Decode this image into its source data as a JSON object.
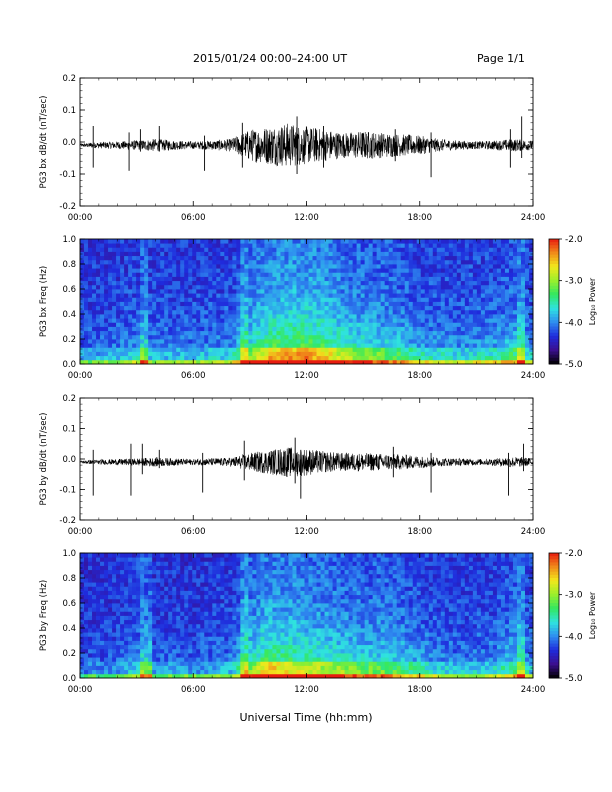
{
  "header": {
    "title": "2015/01/24  00:00–24:00 UT",
    "page": "Page 1/1"
  },
  "xaxis": {
    "label": "Universal Time (hh:mm)",
    "ticks": [
      "00:00",
      "06:00",
      "12:00",
      "18:00",
      "24:00"
    ],
    "range_hours": [
      0,
      24
    ]
  },
  "colorbar": {
    "label": "Log₁₀ Power",
    "ticks": [
      "-2.0",
      "-3.0",
      "-4.0",
      "-5.0"
    ],
    "range": [
      -5,
      -2
    ],
    "colors": [
      "#000000",
      "#3b0f8f",
      "#1f2bdc",
      "#2f8ef0",
      "#2fe3e0",
      "#33e860",
      "#9aef2c",
      "#f2e81c",
      "#f08a1a",
      "#e81c10"
    ]
  },
  "chart_data": [
    {
      "type": "line",
      "ylabel": "PG3 bx dB/dt (nT/sec)",
      "ylim": [
        -0.2,
        0.2
      ],
      "yticks": [
        "0.2",
        "0.1",
        "0.0",
        "-0.1",
        "-0.2"
      ],
      "baseline": -0.01,
      "envelope_hours": [
        0,
        1,
        2,
        3,
        4,
        5,
        6,
        7,
        8,
        9,
        10,
        11,
        12,
        13,
        14,
        15,
        16,
        17,
        18,
        19,
        20,
        21,
        22,
        23,
        24
      ],
      "envelope_amplitude": [
        0.005,
        0.01,
        0.012,
        0.015,
        0.02,
        0.015,
        0.012,
        0.015,
        0.02,
        0.05,
        0.06,
        0.07,
        0.06,
        0.05,
        0.04,
        0.045,
        0.04,
        0.035,
        0.03,
        0.02,
        0.015,
        0.012,
        0.015,
        0.02,
        0.015
      ],
      "spikes": [
        {
          "hour": 0.7,
          "min": -0.08,
          "max": 0.05
        },
        {
          "hour": 2.6,
          "min": -0.09,
          "max": 0.03
        },
        {
          "hour": 3.2,
          "min": -0.03,
          "max": 0.04
        },
        {
          "hour": 4.2,
          "min": -0.03,
          "max": 0.05
        },
        {
          "hour": 6.6,
          "min": -0.09,
          "max": 0.02
        },
        {
          "hour": 8.6,
          "min": -0.08,
          "max": 0.06
        },
        {
          "hour": 11.5,
          "min": -0.1,
          "max": 0.08
        },
        {
          "hour": 12.9,
          "min": -0.08,
          "max": 0.05
        },
        {
          "hour": 16.7,
          "min": -0.06,
          "max": 0.04
        },
        {
          "hour": 18.6,
          "min": -0.11,
          "max": 0.03
        },
        {
          "hour": 22.8,
          "min": -0.08,
          "max": 0.04
        },
        {
          "hour": 23.4,
          "min": -0.05,
          "max": 0.08
        }
      ]
    },
    {
      "type": "heatmap",
      "ylabel": "PG3 bx Freq (Hz)",
      "ylim": [
        0.0,
        1.0
      ],
      "yticks": [
        "1.0",
        "0.8",
        "0.6",
        "0.4",
        "0.2",
        "0.0"
      ],
      "activity_hours": [
        0,
        2,
        3,
        4,
        6,
        8,
        9,
        10,
        11,
        12,
        13,
        14,
        15,
        16,
        17,
        18,
        20,
        22,
        23,
        24
      ],
      "activity_level": [
        0.2,
        0.25,
        0.3,
        0.25,
        0.25,
        0.3,
        0.55,
        0.75,
        0.8,
        0.8,
        0.75,
        0.6,
        0.55,
        0.5,
        0.45,
        0.35,
        0.3,
        0.35,
        0.45,
        0.3
      ],
      "low_freq_bursts": [
        3.4,
        8.7,
        23.3
      ]
    },
    {
      "type": "line",
      "ylabel": "PG3 by dB/dt (nT/sec)",
      "ylim": [
        -0.2,
        0.2
      ],
      "yticks": [
        "0.2",
        "0.1",
        "0.0",
        "-0.1",
        "-0.2"
      ],
      "baseline": -0.01,
      "envelope_hours": [
        0,
        1,
        2,
        3,
        4,
        5,
        6,
        7,
        8,
        9,
        10,
        11,
        12,
        13,
        14,
        15,
        16,
        17,
        18,
        19,
        20,
        21,
        22,
        23,
        24
      ],
      "envelope_amplitude": [
        0.005,
        0.008,
        0.01,
        0.012,
        0.015,
        0.012,
        0.01,
        0.012,
        0.015,
        0.03,
        0.04,
        0.05,
        0.045,
        0.035,
        0.03,
        0.03,
        0.028,
        0.025,
        0.02,
        0.015,
        0.012,
        0.01,
        0.012,
        0.018,
        0.012
      ],
      "spikes": [
        {
          "hour": 0.7,
          "min": -0.12,
          "max": 0.03
        },
        {
          "hour": 2.7,
          "min": -0.12,
          "max": 0.05
        },
        {
          "hour": 3.3,
          "min": -0.05,
          "max": 0.05
        },
        {
          "hour": 4.2,
          "min": -0.03,
          "max": 0.03
        },
        {
          "hour": 6.5,
          "min": -0.11,
          "max": 0.02
        },
        {
          "hour": 8.7,
          "min": -0.07,
          "max": 0.06
        },
        {
          "hour": 11.4,
          "min": -0.08,
          "max": 0.07
        },
        {
          "hour": 11.7,
          "min": -0.13,
          "max": 0.03
        },
        {
          "hour": 16.6,
          "min": -0.06,
          "max": 0.04
        },
        {
          "hour": 18.6,
          "min": -0.11,
          "max": 0.02
        },
        {
          "hour": 22.7,
          "min": -0.12,
          "max": 0.02
        },
        {
          "hour": 23.5,
          "min": -0.04,
          "max": 0.05
        }
      ]
    },
    {
      "type": "heatmap",
      "ylabel": "PG3 by Freq (Hz)",
      "ylim": [
        0.0,
        1.0
      ],
      "yticks": [
        "1.0",
        "0.8",
        "0.6",
        "0.4",
        "0.2",
        "0.0"
      ],
      "activity_hours": [
        0,
        2,
        3,
        4,
        6,
        8,
        9,
        10,
        11,
        12,
        13,
        14,
        15,
        16,
        17,
        18,
        20,
        22,
        23,
        24
      ],
      "activity_level": [
        0.15,
        0.2,
        0.3,
        0.2,
        0.2,
        0.25,
        0.55,
        0.75,
        0.7,
        0.65,
        0.6,
        0.55,
        0.5,
        0.5,
        0.45,
        0.35,
        0.25,
        0.3,
        0.45,
        0.25
      ],
      "low_freq_bursts": [
        3.5,
        8.7,
        23.4
      ]
    }
  ]
}
